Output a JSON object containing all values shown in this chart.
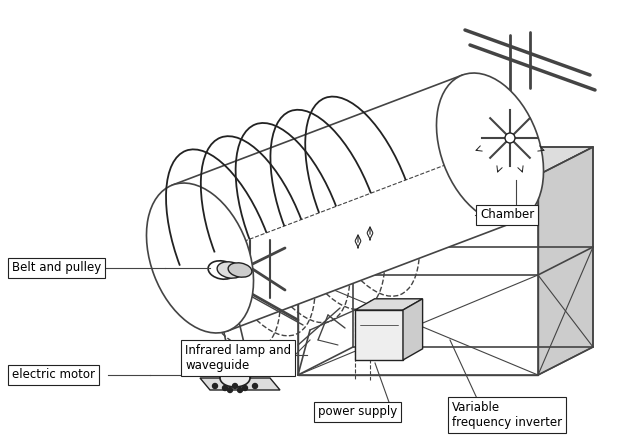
{
  "bg_color": "#ffffff",
  "lc": "#444444",
  "dc": "#222222",
  "gray1": "#cccccc",
  "gray2": "#dddddd",
  "gray3": "#eeeeee",
  "labels": {
    "chamber": "Chamber",
    "belt_pulley": "Belt and pulley",
    "ir_lamp": "Infrared lamp and\nwaveguide",
    "electric_motor": "electric motor",
    "power_supply": "power supply",
    "vf_inverter": "Variable\nfrequency inverter"
  },
  "figsize": [
    6.4,
    4.42
  ],
  "dpi": 100
}
